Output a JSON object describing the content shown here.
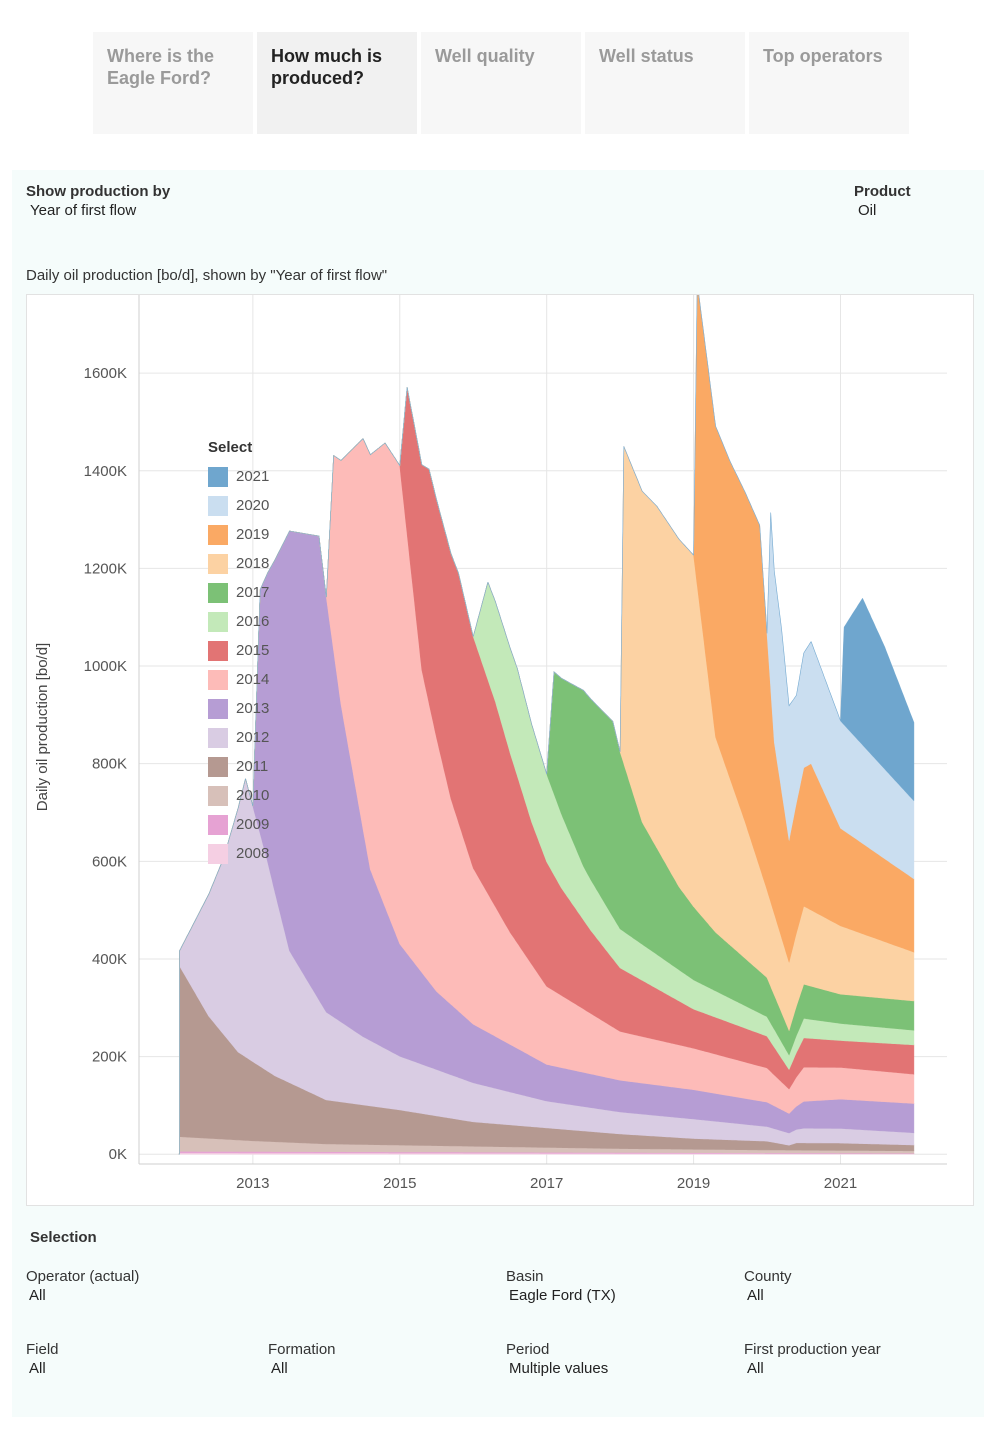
{
  "tabs": [
    {
      "label_line1": "Where is the",
      "label_line2": "Eagle Ford?"
    },
    {
      "label_line1": "How much is",
      "label_line2": "produced?"
    },
    {
      "label_line1": "Well quality",
      "label_line2": ""
    },
    {
      "label_line1": "Well status",
      "label_line2": ""
    },
    {
      "label_line1": "Top operators",
      "label_line2": ""
    }
  ],
  "controls": {
    "show_by_label": "Show production by",
    "show_by_value": "Year of first flow",
    "product_label": "Product",
    "product_value": "Oil"
  },
  "chart_title": "Daily oil production [bo/d], shown by \"Year of first flow\"",
  "legend_title": "Select",
  "selection": {
    "title": "Selection",
    "operator_label": "Operator (actual)",
    "operator_value": "All",
    "basin_label": "Basin",
    "basin_value": "Eagle Ford (TX)",
    "county_label": "County",
    "county_value": "All",
    "field_label": "Field",
    "field_value": "All",
    "formation_label": "Formation",
    "formation_value": "All",
    "period_label": "Period",
    "period_value": "Multiple values",
    "first_year_label": "First production year",
    "first_year_value": "All"
  },
  "chart_data": {
    "type": "area",
    "stacked": true,
    "title": "Daily oil production [bo/d], shown by \"Year of first flow\"",
    "ylabel": "Daily oil production [bo/d]",
    "xlabel": "",
    "x_ticks": [
      2013,
      2015,
      2017,
      2019,
      2021
    ],
    "y_ticks": [
      0,
      200,
      400,
      600,
      800,
      1000,
      1200,
      1400,
      1600
    ],
    "y_tick_labels": [
      "0K",
      "200K",
      "400K",
      "600K",
      "800K",
      "1000K",
      "1200K",
      "1400K",
      "1600K"
    ],
    "xlim": [
      2011.45,
      2022.45
    ],
    "ylim": [
      -20,
      1760
    ],
    "units": "thousand bo/d",
    "grid": true,
    "legend_position": "top-left",
    "series": [
      {
        "name": "2008",
        "color": "#f5cfe3",
        "points": [
          [
            2012.0,
            3
          ],
          [
            2022.0,
            1
          ]
        ]
      },
      {
        "name": "2009",
        "color": "#e6a2d3",
        "points": [
          [
            2012.0,
            3
          ],
          [
            2022.0,
            1
          ]
        ]
      },
      {
        "name": "2010",
        "color": "#d7c0b9",
        "points": [
          [
            2012.0,
            30
          ],
          [
            2013.0,
            22
          ],
          [
            2014.0,
            16
          ],
          [
            2016.0,
            12
          ],
          [
            2018.0,
            8
          ],
          [
            2020.0,
            6
          ],
          [
            2022.0,
            5
          ]
        ]
      },
      {
        "name": "2011",
        "color": "#b59991",
        "points": [
          [
            2012.0,
            350
          ],
          [
            2012.4,
            250
          ],
          [
            2012.8,
            180
          ],
          [
            2013.3,
            135
          ],
          [
            2014.0,
            90
          ],
          [
            2015.0,
            72
          ],
          [
            2016.0,
            50
          ],
          [
            2017.0,
            40
          ],
          [
            2018.0,
            30
          ],
          [
            2019.0,
            22
          ],
          [
            2020.0,
            18
          ],
          [
            2020.3,
            10
          ],
          [
            2020.4,
            15
          ],
          [
            2021.0,
            15
          ],
          [
            2022.0,
            12
          ]
        ]
      },
      {
        "name": "2012",
        "color": "#d9cce3",
        "points": [
          [
            2012.0,
            30
          ],
          [
            2012.6,
            360
          ],
          [
            2012.9,
            570
          ],
          [
            2013.2,
            430
          ],
          [
            2013.5,
            270
          ],
          [
            2014.0,
            180
          ],
          [
            2014.5,
            140
          ],
          [
            2015.0,
            110
          ],
          [
            2016.0,
            80
          ],
          [
            2017.0,
            55
          ],
          [
            2018.0,
            45
          ],
          [
            2019.0,
            40
          ],
          [
            2020.0,
            30
          ],
          [
            2020.3,
            25
          ],
          [
            2020.5,
            30
          ],
          [
            2021.0,
            30
          ],
          [
            2022.0,
            25
          ]
        ]
      },
      {
        "name": "2013",
        "color": "#b69dd4",
        "points": [
          [
            2013.0,
            0
          ],
          [
            2013.1,
            500
          ],
          [
            2013.5,
            860
          ],
          [
            2013.9,
            950
          ],
          [
            2014.2,
            650
          ],
          [
            2014.6,
            350
          ],
          [
            2015.0,
            230
          ],
          [
            2015.5,
            160
          ],
          [
            2016.0,
            120
          ],
          [
            2017.0,
            75
          ],
          [
            2018.0,
            65
          ],
          [
            2019.0,
            60
          ],
          [
            2020.0,
            50
          ],
          [
            2020.3,
            40
          ],
          [
            2020.5,
            55
          ],
          [
            2021.0,
            60
          ],
          [
            2022.0,
            60
          ]
        ]
      },
      {
        "name": "2014",
        "color": "#fdbbb8",
        "points": [
          [
            2014.0,
            0
          ],
          [
            2014.1,
            400
          ],
          [
            2014.5,
            800
          ],
          [
            2014.8,
            950
          ],
          [
            2015.0,
            980
          ],
          [
            2015.3,
            620
          ],
          [
            2015.7,
            420
          ],
          [
            2016.0,
            320
          ],
          [
            2016.5,
            230
          ],
          [
            2017.0,
            160
          ],
          [
            2018.0,
            100
          ],
          [
            2019.0,
            85
          ],
          [
            2020.0,
            70
          ],
          [
            2020.3,
            50
          ],
          [
            2020.5,
            70
          ],
          [
            2021.0,
            65
          ],
          [
            2022.0,
            60
          ]
        ]
      },
      {
        "name": "2015",
        "color": "#e27474",
        "points": [
          [
            2015.0,
            0
          ],
          [
            2015.1,
            300
          ],
          [
            2015.4,
            480
          ],
          [
            2015.8,
            510
          ],
          [
            2016.3,
            420
          ],
          [
            2016.8,
            290
          ],
          [
            2017.2,
            220
          ],
          [
            2017.6,
            170
          ],
          [
            2018.0,
            130
          ],
          [
            2019.0,
            80
          ],
          [
            2020.0,
            65
          ],
          [
            2020.3,
            40
          ],
          [
            2020.5,
            60
          ],
          [
            2021.0,
            55
          ],
          [
            2022.0,
            60
          ]
        ]
      },
      {
        "name": "2016",
        "color": "#c3e9b9",
        "points": [
          [
            2016.0,
            0
          ],
          [
            2016.2,
            200
          ],
          [
            2016.6,
            220
          ],
          [
            2017.0,
            180
          ],
          [
            2017.5,
            110
          ],
          [
            2018.0,
            80
          ],
          [
            2019.0,
            60
          ],
          [
            2020.0,
            40
          ],
          [
            2020.3,
            30
          ],
          [
            2020.5,
            40
          ],
          [
            2021.0,
            35
          ],
          [
            2022.0,
            30
          ]
        ]
      },
      {
        "name": "2017",
        "color": "#7cc176",
        "points": [
          [
            2017.0,
            0
          ],
          [
            2017.1,
            250
          ],
          [
            2017.5,
            360
          ],
          [
            2017.9,
            400
          ],
          [
            2018.3,
            250
          ],
          [
            2018.8,
            170
          ],
          [
            2019.3,
            120
          ],
          [
            2020.0,
            80
          ],
          [
            2020.3,
            50
          ],
          [
            2020.5,
            70
          ],
          [
            2021.0,
            60
          ],
          [
            2022.0,
            60
          ]
        ]
      },
      {
        "name": "2018",
        "color": "#fcd2a3",
        "points": [
          [
            2018.0,
            0
          ],
          [
            2018.05,
            650
          ],
          [
            2018.5,
            700
          ],
          [
            2019.0,
            720
          ],
          [
            2019.3,
            400
          ],
          [
            2019.7,
            280
          ],
          [
            2020.0,
            180
          ],
          [
            2020.3,
            140
          ],
          [
            2020.5,
            160
          ],
          [
            2021.0,
            140
          ],
          [
            2022.0,
            100
          ]
        ]
      },
      {
        "name": "2019",
        "color": "#faa964",
        "points": [
          [
            2019.0,
            0
          ],
          [
            2019.05,
            620
          ],
          [
            2019.5,
            650
          ],
          [
            2019.9,
            700
          ],
          [
            2020.1,
            350
          ],
          [
            2020.3,
            250
          ],
          [
            2020.6,
            300
          ],
          [
            2021.0,
            200
          ],
          [
            2022.0,
            150
          ]
        ]
      },
      {
        "name": "2020",
        "color": "#cadef0",
        "points": [
          [
            2020.0,
            0
          ],
          [
            2020.05,
            360
          ],
          [
            2020.2,
            330
          ],
          [
            2020.4,
            220
          ],
          [
            2020.6,
            250
          ],
          [
            2021.0,
            220
          ],
          [
            2022.0,
            160
          ]
        ]
      },
      {
        "name": "2021",
        "color": "#6fa6ce",
        "points": [
          [
            2021.0,
            0
          ],
          [
            2021.05,
            200
          ],
          [
            2021.3,
            300
          ],
          [
            2021.6,
            250
          ],
          [
            2022.0,
            160
          ]
        ]
      }
    ]
  }
}
